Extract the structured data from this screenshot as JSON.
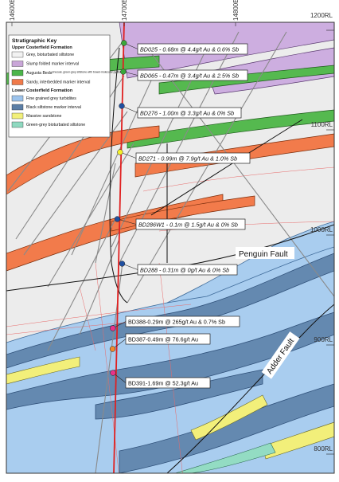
{
  "grid": {
    "eastings": [
      "14600E",
      "14700E",
      "14800E"
    ],
    "rls": [
      "1200RL",
      "1100RL",
      "1000RL",
      "900RL",
      "800RL"
    ]
  },
  "legend": {
    "title": "Stratigraphic Key",
    "upper_heading": "Upper Costerfield Formation",
    "upper_items": [
      {
        "label": "Grey, bioturbated siltstone",
        "color": "#f2f2f2"
      },
      {
        "label": "Slump folded marker interval",
        "color": "#c9a6d8"
      },
      {
        "label": "Augusta Beds",
        "note": "Unusual, green-grey siltstone with bowel-molecular pyritol",
        "color": "#4cb54a"
      },
      {
        "label": "Sandy, interbedded marker interval",
        "color": "#f07a4a"
      }
    ],
    "lower_heading": "Lower Costerfield Formation",
    "lower_items": [
      {
        "label": "Fine grained grey turbidites",
        "color": "#9cc3ec"
      },
      {
        "label": "Black siltstone marker interval",
        "color": "#5b7ea6"
      },
      {
        "label": "Massive sandstone",
        "color": "#f2f07a"
      },
      {
        "label": "Green-grey bioturbated siltstone",
        "color": "#8fd9c0"
      }
    ]
  },
  "faults": [
    {
      "label": "Penguin Fault"
    },
    {
      "label": "Adder Fault"
    }
  ],
  "intercepts": [
    {
      "label": "BD025 - 0.68m @ 4.4g/t Au & 0.6% Sb",
      "color": "#3aa83a",
      "italic": true
    },
    {
      "label": "BD065 - 0.47m @ 3.4g/t Au & 2.5% Sb",
      "color": "#3aa83a",
      "italic": true
    },
    {
      "label": "BD276 - 1.00m @ 3.3g/t Au & 0% Sb",
      "color": "#1f4fa0",
      "italic": true
    },
    {
      "label": "BD271 - 0.99m @ 7.9g/t Au & 1.0% Sb",
      "color": "#f4f02a",
      "italic": true
    },
    {
      "label": "BD286W1 - 0.1m @ 1.5g/t Au & 0% Sb",
      "color": "#1f4fa0",
      "italic": true
    },
    {
      "label": "BD288 - 0.31m @ 0g/t Au & 0% Sb",
      "color": "#1f4fa0",
      "italic": true
    },
    {
      "label": "BD388-0.29m @ 265g/t Au & 0.7% Sb",
      "color": "#e8338a",
      "italic": false
    },
    {
      "label": "BD387-0.49m @ 76.6g/t Au",
      "color": "#f08a2a",
      "italic": false
    },
    {
      "label": "BD391-1.69m @ 52.3g/t Au",
      "color": "#e8338a",
      "italic": false
    }
  ],
  "colors": {
    "drill_trace": "#e02020",
    "drill_trace_grey": "#8a8a8a",
    "section_line": "#111111"
  }
}
